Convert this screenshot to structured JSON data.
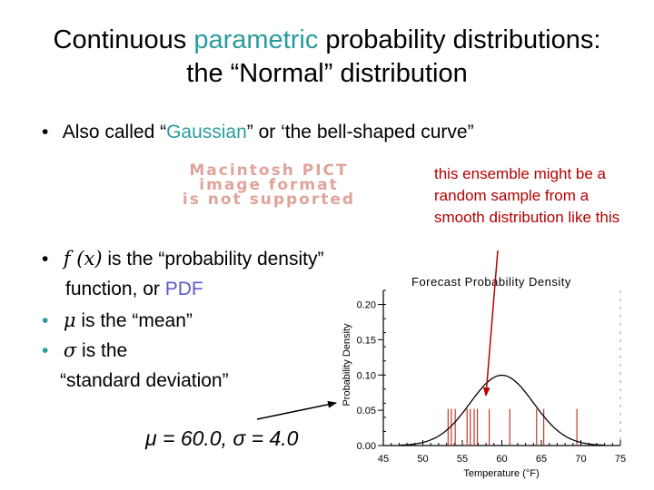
{
  "title": {
    "line1_a": "Continuous",
    "line1_b": "parametric",
    "line1_c": "probability distributions:",
    "line2": "the “Normal” distribution"
  },
  "bullets": {
    "b1_a": "Also called “",
    "b1_b": "Gaussian",
    "b1_c": "” or ‘the bell-shaped curve”",
    "b2_sym": "f (x)",
    "b2_text": "is the “probability density”",
    "b2_line2_a": "function, or",
    "b2_line2_b": "PDF",
    "b3_sym": "μ",
    "b3_text": "is the “mean”",
    "b4_sym": "σ",
    "b4_text": "is the",
    "b4_line2": "“standard deviation”"
  },
  "pict_placeholder": [
    "Macintosh PICT",
    "image format",
    "is not supported"
  ],
  "note": "this ensemble might be a random sample from a smooth distribution like this",
  "params": {
    "text": "μ = 60.0,  σ = 4.0"
  },
  "colors": {
    "accent_teal": "#2a9c9c",
    "note_red": "#b50000",
    "pdf_blue": "#5b5bc7",
    "curve": "#000000",
    "ensemble_lines": "#c0392b"
  },
  "chart_data": {
    "type": "line",
    "title": "Forecast Probability Density",
    "xlabel": "Temperature (°F)",
    "ylabel": "Probability Density",
    "xlim": [
      45,
      75
    ],
    "ylim": [
      0,
      0.22
    ],
    "x_ticks": [
      "45",
      "50",
      "55",
      "60",
      "65",
      "70",
      "75"
    ],
    "y_ticks": [
      "0.00",
      "0.05",
      "0.10",
      "0.15",
      "0.20"
    ],
    "mean": 60.0,
    "std": 4.0,
    "ensemble_members": [
      53.2,
      53.6,
      54.1,
      55.6,
      56.0,
      56.5,
      56.9,
      58.4,
      61.0,
      64.4,
      65.3,
      69.5
    ],
    "ensemble_height": 0.052
  }
}
